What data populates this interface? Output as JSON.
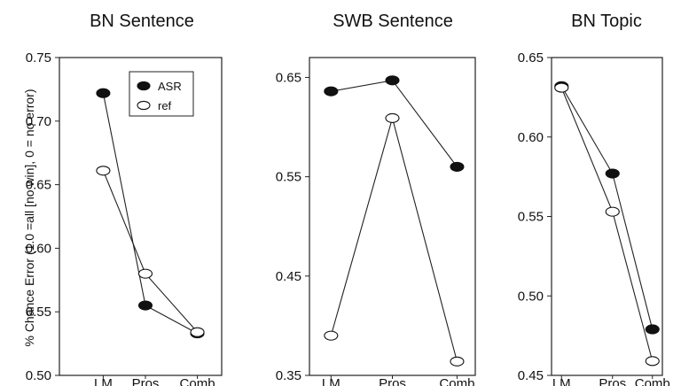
{
  "ylabel": "% Chance Error (1.0 =all [no win], 0 = no error)",
  "chart_data": [
    {
      "type": "line",
      "title": "BN Sentence",
      "categories": [
        "LM",
        "Pros",
        "Comb"
      ],
      "ylim": [
        0.5,
        0.75
      ],
      "yticks": [
        "0.50",
        "0.55",
        "0.60",
        "0.65",
        "0.70",
        "0.75"
      ],
      "legend": "top-right",
      "series": [
        {
          "name": "ASR",
          "marker": "filled",
          "values": [
            0.722,
            0.555,
            0.533
          ]
        },
        {
          "name": "ref",
          "marker": "open",
          "values": [
            0.661,
            0.58,
            0.534
          ]
        }
      ]
    },
    {
      "type": "line",
      "title": "SWB Sentence",
      "categories": [
        "LM",
        "Pros",
        "Comb"
      ],
      "ylim": [
        0.35,
        0.67
      ],
      "yticks": [
        "0.35",
        "0.45",
        "0.55",
        "0.65"
      ],
      "series": [
        {
          "name": "ASR",
          "marker": "filled",
          "values": [
            0.636,
            0.647,
            0.56
          ]
        },
        {
          "name": "ref",
          "marker": "open",
          "values": [
            0.39,
            0.609,
            0.364
          ]
        }
      ]
    },
    {
      "type": "line",
      "title": "BN Topic",
      "categories": [
        "LM",
        "Pros",
        "Comb"
      ],
      "ylim": [
        0.45,
        0.65
      ],
      "yticks": [
        "0.45",
        "0.50",
        "0.55",
        "0.60",
        "0.65"
      ],
      "series": [
        {
          "name": "ASR",
          "marker": "filled",
          "values": [
            0.632,
            0.577,
            0.479
          ]
        },
        {
          "name": "ref",
          "marker": "open",
          "values": [
            0.631,
            0.553,
            0.459
          ]
        }
      ]
    }
  ]
}
